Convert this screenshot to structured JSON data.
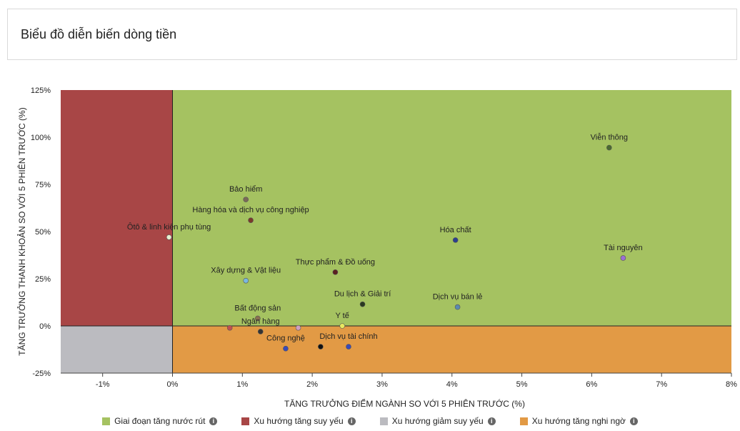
{
  "header": {
    "title": "Biểu đồ diễn biến dòng tiền"
  },
  "colors": {
    "green": "#a5c261",
    "red": "#a84646",
    "grey": "#bbbbc0",
    "orange": "#e29a45"
  },
  "legend": [
    {
      "label": "Giai đoạn tăng nước rút",
      "color": "#a5c261",
      "icon": "info-icon"
    },
    {
      "label": "Xu hướng tăng suy yếu",
      "color": "#a84646",
      "icon": "info-icon"
    },
    {
      "label": "Xu hướng giảm suy yếu",
      "color": "#bbbbc0",
      "icon": "info-icon"
    },
    {
      "label": "Xu hướng tăng nghi ngờ",
      "color": "#e29a45",
      "icon": "info-icon"
    }
  ],
  "chart_data": {
    "type": "scatter",
    "title": "Biểu đồ diễn biến dòng tiền",
    "xlabel": "TĂNG TRƯỞNG ĐIỂM NGÀNH SO VỚI 5 PHIÊN TRƯỚC (%)",
    "ylabel": "TĂNG TRƯỞNG THANH KHOẢN SO VỚI 5 PHIÊN TRƯỚC (%)",
    "xlim": [
      -1.6,
      8
    ],
    "ylim": [
      -25,
      125
    ],
    "x_ticks": [
      -1,
      0,
      1,
      2,
      3,
      4,
      5,
      6,
      7,
      8
    ],
    "x_tick_labels": [
      "-1%",
      "0%",
      "1%",
      "2%",
      "3%",
      "4%",
      "5%",
      "6%",
      "7%",
      "8%"
    ],
    "y_ticks": [
      -25,
      0,
      25,
      50,
      75,
      100,
      125
    ],
    "y_tick_labels": [
      "-25%",
      "0%",
      "25%",
      "50%",
      "75%",
      "100%",
      "125%"
    ],
    "quadrants": [
      {
        "name": "Giai đoạn tăng nước rút",
        "x": [
          0,
          8
        ],
        "y": [
          0,
          125
        ],
        "color": "#a5c261"
      },
      {
        "name": "Xu hướng tăng suy yếu",
        "x": [
          -1.6,
          0
        ],
        "y": [
          0,
          125
        ],
        "color": "#a84646"
      },
      {
        "name": "Xu hướng giảm suy yếu",
        "x": [
          -1.6,
          0
        ],
        "y": [
          -25,
          0
        ],
        "color": "#bbbbc0"
      },
      {
        "name": "Xu hướng tăng nghi ngờ",
        "x": [
          0,
          8
        ],
        "y": [
          -25,
          0
        ],
        "color": "#e29a45"
      }
    ],
    "points": [
      {
        "label": "Viễn thông",
        "x": 6.25,
        "y": 94.5,
        "color": "#4a6a30"
      },
      {
        "label": "Tài nguyên",
        "x": 6.45,
        "y": 36,
        "color": "#9b6fd4"
      },
      {
        "label": "Hóa chất",
        "x": 4.05,
        "y": 45.5,
        "color": "#2b3f8f"
      },
      {
        "label": "Dịch vụ bán lẻ",
        "x": 4.08,
        "y": 10,
        "color": "#5b8ab0"
      },
      {
        "label": "Bảo hiểm",
        "x": 1.05,
        "y": 67,
        "color": "#7a6a58"
      },
      {
        "label": "Hàng hóa và dịch vụ công nghiệp",
        "x": 1.12,
        "y": 56,
        "color": "#7a3a2a"
      },
      {
        "label": "Ôtô & linh kiện phụ tùng",
        "x": -0.05,
        "y": 47,
        "color": "#e8f0d0"
      },
      {
        "label": "Thực phẩm & Đồ uống",
        "x": 2.33,
        "y": 28.5,
        "color": "#5a2020"
      },
      {
        "label": "Xây dựng & Vật liệu",
        "x": 1.05,
        "y": 24,
        "color": "#7ab8e0"
      },
      {
        "label": "Du lịch & Giải trí",
        "x": 2.72,
        "y": 11.5,
        "color": "#2a3a20"
      },
      {
        "label": "Bất động sản",
        "x": 1.22,
        "y": 4,
        "color": "#8a7050"
      },
      {
        "label": "Ngân hàng",
        "x": 1.26,
        "y": -3,
        "color": "#333333"
      },
      {
        "label": "Y tế",
        "x": 2.43,
        "y": 0,
        "color": "#e8e860"
      },
      {
        "label": "Công nghệ",
        "x": 1.62,
        "y": -12,
        "color": "#3a4ab8"
      },
      {
        "label": "Dịch vụ tài chính",
        "x": 2.52,
        "y": -11,
        "color": "#3a4ab8"
      },
      {
        "label": "",
        "x": 2.12,
        "y": -11,
        "color": "#111111"
      },
      {
        "label": "",
        "x": 1.8,
        "y": -1,
        "color": "#d0a0c0"
      },
      {
        "label": "",
        "x": 0.82,
        "y": -1,
        "color": "#c05050"
      }
    ]
  }
}
